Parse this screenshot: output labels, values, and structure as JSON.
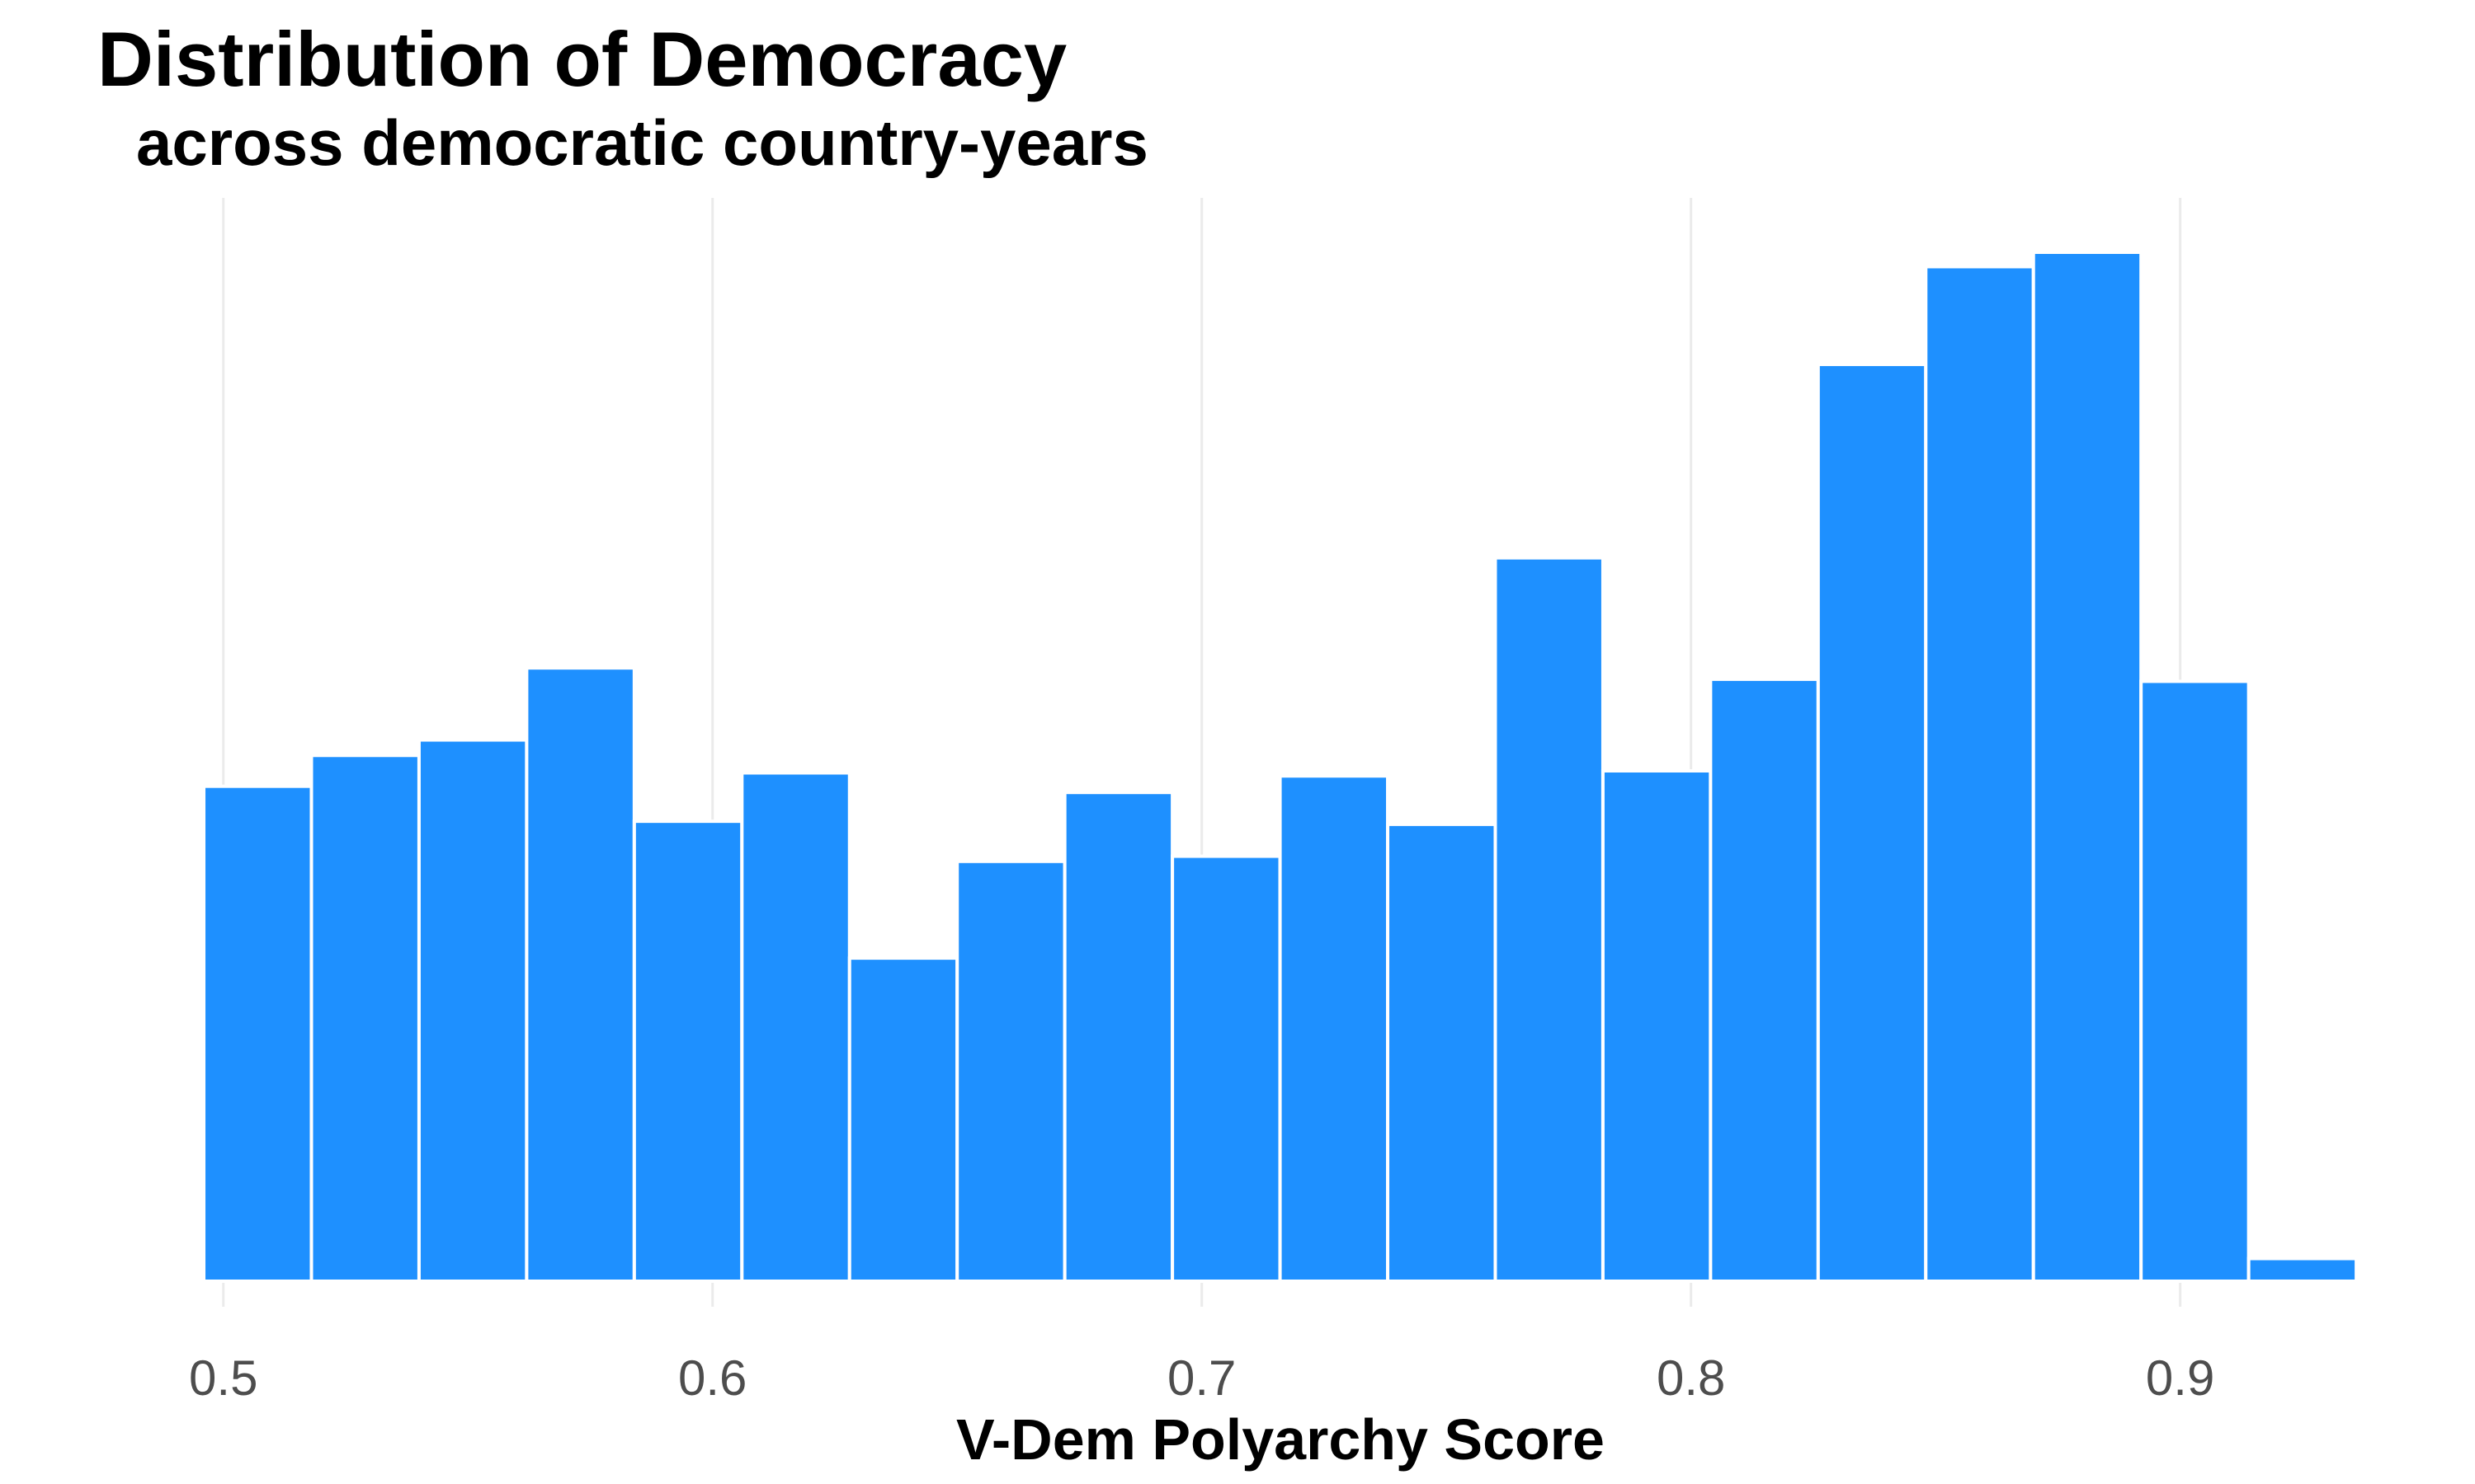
{
  "chart_data": {
    "type": "bar",
    "title": "Distribution of Democracy",
    "subtitle": "across democratic country-years",
    "xlabel": "V-Dem Polyarchy Score",
    "ylabel": "",
    "xlim": [
      0.4965,
      0.9375
    ],
    "x_ticks": [
      0.5,
      0.6,
      0.7,
      0.8,
      0.9
    ],
    "x_tick_labels": [
      "0.5",
      "0.6",
      "0.7",
      "0.8",
      "0.9"
    ],
    "y_axis_shown": false,
    "grid": "vertical-major",
    "bin_width": 0.022,
    "bins": [
      {
        "start": 0.496,
        "end": 0.518,
        "value": 0.481
      },
      {
        "start": 0.518,
        "end": 0.54,
        "value": 0.511
      },
      {
        "start": 0.54,
        "end": 0.562,
        "value": 0.526
      },
      {
        "start": 0.562,
        "end": 0.584,
        "value": 0.596
      },
      {
        "start": 0.584,
        "end": 0.606,
        "value": 0.447
      },
      {
        "start": 0.606,
        "end": 0.628,
        "value": 0.494
      },
      {
        "start": 0.628,
        "end": 0.65,
        "value": 0.314
      },
      {
        "start": 0.65,
        "end": 0.672,
        "value": 0.408
      },
      {
        "start": 0.672,
        "end": 0.694,
        "value": 0.475
      },
      {
        "start": 0.694,
        "end": 0.716,
        "value": 0.413
      },
      {
        "start": 0.716,
        "end": 0.738,
        "value": 0.491
      },
      {
        "start": 0.738,
        "end": 0.76,
        "value": 0.444
      },
      {
        "start": 0.76,
        "end": 0.782,
        "value": 0.703
      },
      {
        "start": 0.782,
        "end": 0.804,
        "value": 0.496
      },
      {
        "start": 0.804,
        "end": 0.826,
        "value": 0.585
      },
      {
        "start": 0.826,
        "end": 0.848,
        "value": 0.891
      },
      {
        "start": 0.848,
        "end": 0.87,
        "value": 0.986
      },
      {
        "start": 0.87,
        "end": 0.892,
        "value": 1.0
      },
      {
        "start": 0.892,
        "end": 0.914,
        "value": 0.583
      },
      {
        "start": 0.914,
        "end": 0.936,
        "value": 0.022
      }
    ],
    "colors": {
      "bar_fill": "#1e90ff",
      "bar_stroke": "#ffffff",
      "grid": "#ebebeb",
      "tick_text": "#4d4d4d",
      "title_text": "#000000"
    }
  }
}
